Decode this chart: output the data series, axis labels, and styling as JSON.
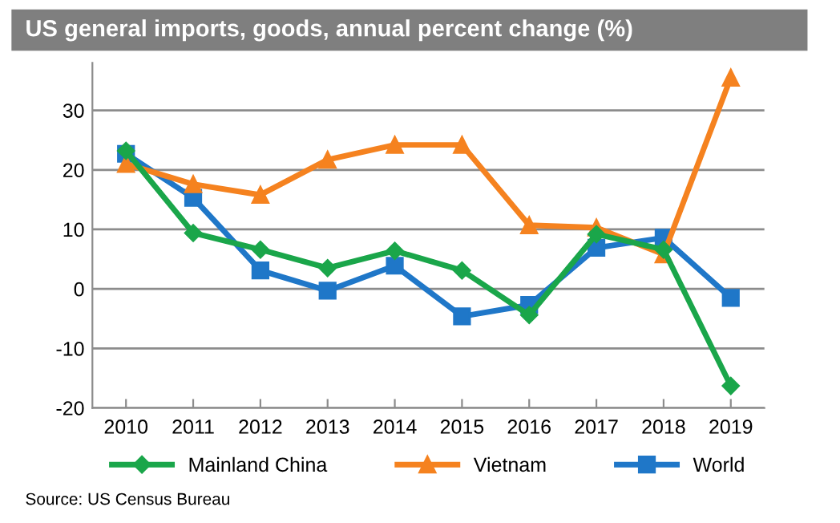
{
  "chart_data": {
    "type": "line",
    "title": "US general imports, goods, annual percent change (%)",
    "categories": [
      "2010",
      "2011",
      "2012",
      "2013",
      "2014",
      "2015",
      "2016",
      "2017",
      "2018",
      "2019"
    ],
    "series": [
      {
        "name": "Mainland China",
        "color": "#1aa64a",
        "marker": "diamond",
        "values": [
          23.2,
          9.4,
          6.6,
          3.5,
          6.4,
          3.1,
          -4.4,
          9.2,
          6.6,
          -16.3
        ]
      },
      {
        "name": "Vietnam",
        "color": "#f5821f",
        "marker": "triangle",
        "values": [
          21.0,
          17.6,
          15.8,
          21.7,
          24.2,
          24.2,
          10.7,
          10.3,
          5.8,
          35.5
        ]
      },
      {
        "name": "World",
        "color": "#1f77c8",
        "marker": "square",
        "values": [
          22.7,
          15.3,
          3.1,
          -0.3,
          3.9,
          -4.6,
          -2.7,
          6.9,
          8.6,
          -1.5
        ]
      }
    ],
    "ylim": [
      -20,
      38
    ],
    "yticks": [
      -20,
      -10,
      0,
      10,
      20,
      30
    ],
    "grid": "y",
    "legend": "bottom",
    "annotations": [
      "Source: US Census Bureau"
    ]
  }
}
